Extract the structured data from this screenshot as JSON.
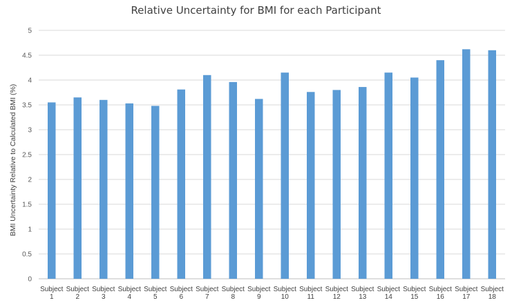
{
  "chart_data": {
    "type": "bar",
    "title": "Relative Uncertainty for BMI for each Participant",
    "xlabel": "",
    "ylabel": "BMI Uncertainty Relative to Calculated BMI (%)",
    "ylim": [
      0,
      5
    ],
    "yticks": [
      "0",
      "0.5",
      "1",
      "1.5",
      "2",
      "2.5",
      "3",
      "3.5",
      "4",
      "4.5",
      "5"
    ],
    "ytick_values": [
      0,
      0.5,
      1,
      1.5,
      2,
      2.5,
      3,
      3.5,
      4,
      4.5,
      5
    ],
    "grid": true,
    "legend": "none",
    "bar_color": "#5b9bd5",
    "categories": [
      {
        "line1": "Subject",
        "line2": "1"
      },
      {
        "line1": "Subject",
        "line2": "2"
      },
      {
        "line1": "Subject",
        "line2": "3"
      },
      {
        "line1": "Subject",
        "line2": "4"
      },
      {
        "line1": "Subject",
        "line2": "5"
      },
      {
        "line1": "Subject",
        "line2": "6"
      },
      {
        "line1": "Subject",
        "line2": "7"
      },
      {
        "line1": "Subject",
        "line2": "8"
      },
      {
        "line1": "Subject",
        "line2": "9"
      },
      {
        "line1": "Subject",
        "line2": "10"
      },
      {
        "line1": "Subject",
        "line2": "11"
      },
      {
        "line1": "Subject",
        "line2": "12"
      },
      {
        "line1": "Subject",
        "line2": "13"
      },
      {
        "line1": "Subject",
        "line2": "14"
      },
      {
        "line1": "Subject",
        "line2": "15"
      },
      {
        "line1": "Subject",
        "line2": "16"
      },
      {
        "line1": "Subject",
        "line2": "17"
      },
      {
        "line1": "Subject",
        "line2": "18"
      }
    ],
    "values": [
      3.55,
      3.65,
      3.6,
      3.53,
      3.48,
      3.81,
      4.1,
      3.96,
      3.62,
      4.15,
      3.76,
      3.8,
      3.86,
      4.15,
      4.05,
      4.4,
      4.62,
      4.6
    ]
  }
}
